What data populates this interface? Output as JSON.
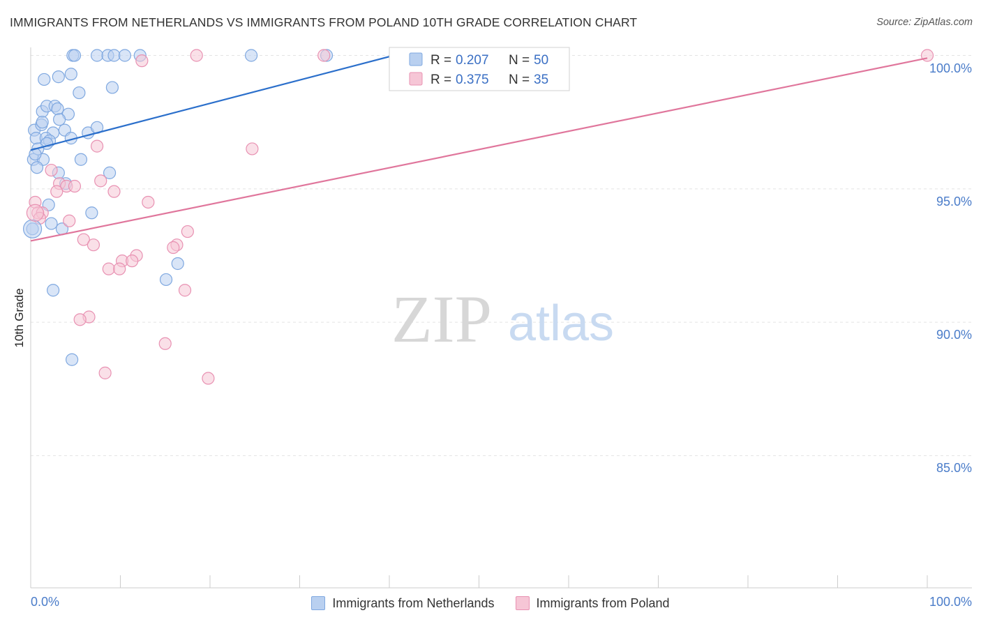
{
  "chart_data": {
    "type": "scatter",
    "title": "IMMIGRANTS FROM NETHERLANDS VS IMMIGRANTS FROM POLAND 10TH GRADE CORRELATION CHART",
    "source": "Source: ZipAtlas.com",
    "ylabel": "10th Grade",
    "xlim": [
      0,
      100
    ],
    "ylim": [
      80.5,
      100.8
    ],
    "x_tick_labels": [
      "0.0%",
      "100.0%"
    ],
    "y_ticks": [
      85,
      90,
      95,
      100
    ],
    "y_tick_labels": [
      "85.0%",
      "90.0%",
      "95.0%",
      "100.0%"
    ],
    "grid": true,
    "watermark": {
      "part1": "ZIP",
      "part2": "atlas"
    },
    "legend": [
      {
        "r_label": "R =",
        "r_value": "0.207",
        "n_label": "N =",
        "n_value": "50"
      },
      {
        "r_label": "R =",
        "r_value": "0.375",
        "n_label": "N =",
        "n_value": "35"
      }
    ],
    "series": [
      {
        "name": "Immigrants from Netherlands",
        "color": "#7fa8e0",
        "fill": "#b9d0f0",
        "trend_color": "#2b6fcb",
        "trend": {
          "x": [
            0,
            40.5
          ],
          "y": [
            96.45,
            100.0
          ]
        },
        "points": [
          [
            4.7,
            100.0
          ],
          [
            4.9,
            100.0
          ],
          [
            7.4,
            100.0
          ],
          [
            8.6,
            100.0
          ],
          [
            9.3,
            100.0
          ],
          [
            10.5,
            100.0
          ],
          [
            12.2,
            100.0
          ],
          [
            24.6,
            100.0
          ],
          [
            33.0,
            100.0
          ],
          [
            1.5,
            99.1
          ],
          [
            3.1,
            99.2
          ],
          [
            4.5,
            99.3
          ],
          [
            5.4,
            98.6
          ],
          [
            9.1,
            98.8
          ],
          [
            1.3,
            97.9
          ],
          [
            1.8,
            98.1
          ],
          [
            2.7,
            98.1
          ],
          [
            3.0,
            98.0
          ],
          [
            4.2,
            97.8
          ],
          [
            3.2,
            97.6
          ],
          [
            0.4,
            97.2
          ],
          [
            1.2,
            97.4
          ],
          [
            1.3,
            97.5
          ],
          [
            2.5,
            97.1
          ],
          [
            3.8,
            97.2
          ],
          [
            6.4,
            97.1
          ],
          [
            7.4,
            97.3
          ],
          [
            0.6,
            96.9
          ],
          [
            1.7,
            96.9
          ],
          [
            2.1,
            96.8
          ],
          [
            1.8,
            96.7
          ],
          [
            4.5,
            96.9
          ],
          [
            0.3,
            96.1
          ],
          [
            0.8,
            96.5
          ],
          [
            1.4,
            96.1
          ],
          [
            0.7,
            95.8
          ],
          [
            5.6,
            96.1
          ],
          [
            3.1,
            95.6
          ],
          [
            8.8,
            95.6
          ],
          [
            3.9,
            95.2
          ],
          [
            2.0,
            94.4
          ],
          [
            2.3,
            93.7
          ],
          [
            6.8,
            94.1
          ],
          [
            3.5,
            93.5
          ],
          [
            0.2,
            93.5
          ],
          [
            16.4,
            92.2
          ],
          [
            15.1,
            91.6
          ],
          [
            2.5,
            91.2
          ],
          [
            4.6,
            88.6
          ],
          [
            0.5,
            96.3
          ]
        ]
      },
      {
        "name": "Immigrants from Poland",
        "color": "#e891b2",
        "fill": "#f6c6d6",
        "trend_color": "#e0769c",
        "trend": {
          "x": [
            0,
            100
          ],
          "y": [
            93.05,
            99.9
          ]
        },
        "points": [
          [
            18.5,
            100.0
          ],
          [
            32.7,
            100.0
          ],
          [
            100.0,
            100.0
          ],
          [
            12.4,
            99.8
          ],
          [
            7.4,
            96.6
          ],
          [
            24.7,
            96.5
          ],
          [
            2.3,
            95.7
          ],
          [
            7.8,
            95.3
          ],
          [
            3.2,
            95.2
          ],
          [
            4.0,
            95.1
          ],
          [
            4.9,
            95.1
          ],
          [
            9.3,
            94.9
          ],
          [
            2.9,
            94.9
          ],
          [
            0.5,
            94.5
          ],
          [
            13.1,
            94.5
          ],
          [
            0.8,
            94.1
          ],
          [
            1.3,
            94.1
          ],
          [
            1.0,
            93.9
          ],
          [
            4.3,
            93.8
          ],
          [
            17.5,
            93.4
          ],
          [
            5.9,
            93.1
          ],
          [
            7.0,
            92.9
          ],
          [
            16.3,
            92.9
          ],
          [
            15.9,
            92.8
          ],
          [
            11.8,
            92.5
          ],
          [
            10.2,
            92.3
          ],
          [
            11.3,
            92.3
          ],
          [
            8.7,
            92.0
          ],
          [
            9.9,
            92.0
          ],
          [
            17.2,
            91.2
          ],
          [
            6.5,
            90.2
          ],
          [
            5.5,
            90.1
          ],
          [
            15.0,
            89.2
          ],
          [
            8.3,
            88.1
          ],
          [
            19.8,
            87.9
          ]
        ]
      }
    ]
  }
}
